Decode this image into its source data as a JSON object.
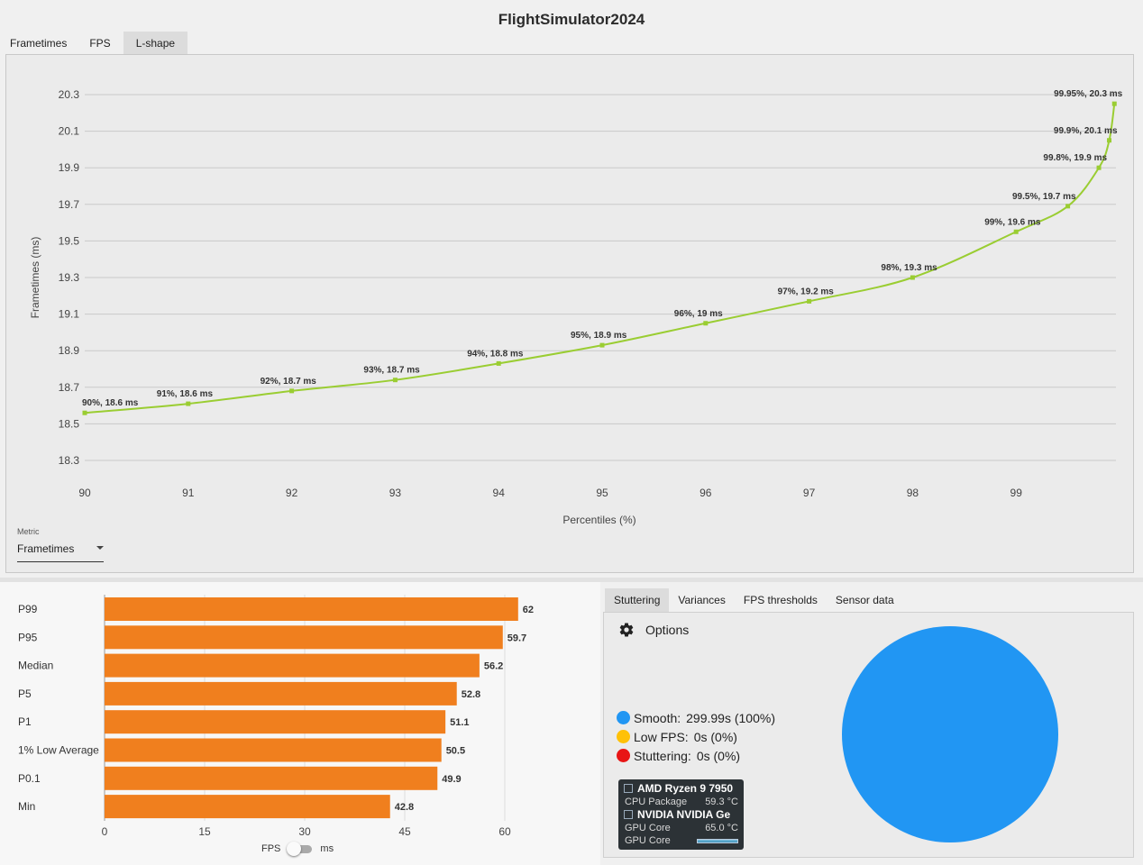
{
  "app_title": "FlightSimulator2024",
  "top_tabs": [
    "Frametimes",
    "FPS",
    "L-shape"
  ],
  "active_top_tab": "L-shape",
  "metric": {
    "label": "Metric",
    "value": "Frametimes"
  },
  "lshape_chart": {
    "type": "line",
    "xlabel": "Percentiles (%)",
    "ylabel": "Frametimes (ms)",
    "x_ticks": [
      90,
      91,
      92,
      93,
      94,
      95,
      96,
      97,
      98,
      99
    ],
    "y_ticks": [
      "18.3",
      "18.5",
      "18.7",
      "18.9",
      "19.1",
      "19.3",
      "19.5",
      "19.7",
      "19.9",
      "20.1",
      "20.3"
    ],
    "ylim": [
      18.3,
      20.3
    ],
    "line_color": "#9acd32",
    "points": [
      {
        "x": 90,
        "y": 18.56,
        "label": "90%, 18.6 ms"
      },
      {
        "x": 91,
        "y": 18.61,
        "label": "91%, 18.6 ms"
      },
      {
        "x": 92,
        "y": 18.68,
        "label": "92%, 18.7 ms"
      },
      {
        "x": 93,
        "y": 18.74,
        "label": "93%, 18.7 ms"
      },
      {
        "x": 94,
        "y": 18.83,
        "label": "94%, 18.8 ms"
      },
      {
        "x": 95,
        "y": 18.93,
        "label": "95%, 18.9 ms"
      },
      {
        "x": 96,
        "y": 19.05,
        "label": "96%, 19 ms"
      },
      {
        "x": 97,
        "y": 19.17,
        "label": "97%, 19.2 ms"
      },
      {
        "x": 98,
        "y": 19.3,
        "label": "98%, 19.3 ms"
      },
      {
        "x": 99,
        "y": 19.55,
        "label": "99%, 19.6 ms"
      },
      {
        "x": 99.5,
        "y": 19.69,
        "label": "99.5%, 19.7 ms"
      },
      {
        "x": 99.8,
        "y": 19.9,
        "label": "99.8%, 19.9 ms"
      },
      {
        "x": 99.9,
        "y": 20.05,
        "label": "99.9%, 20.1 ms"
      },
      {
        "x": 99.95,
        "y": 20.25,
        "label": "99.95%, 20.3 ms"
      }
    ]
  },
  "chart_data": {
    "type": "bar",
    "orientation": "horizontal",
    "categories": [
      "P99",
      "P95",
      "Median",
      "P5",
      "P1",
      "1% Low Average",
      "P0.1",
      "Min"
    ],
    "values": [
      62,
      59.7,
      56.2,
      52.8,
      51.1,
      50.5,
      49.9,
      42.8
    ],
    "x_ticks": [
      0,
      15,
      30,
      45,
      60
    ],
    "xlim": [
      0,
      60
    ],
    "bar_color": "#f07f1e"
  },
  "unit_toggle": {
    "left": "FPS",
    "right": "ms"
  },
  "right_tabs": [
    "Stuttering",
    "Variances",
    "FPS thresholds",
    "Sensor data"
  ],
  "active_right_tab": "Stuttering",
  "options_label": "Options",
  "stutter_legend": [
    {
      "label": "Smooth:",
      "value": "299.99s (100%)",
      "color": "#2196f3"
    },
    {
      "label": "Low FPS:",
      "value": "0s (0%)",
      "color": "#ffc107"
    },
    {
      "label": "Stuttering:",
      "value": "0s (0%)",
      "color": "#e81515"
    }
  ],
  "pie_fraction_smooth": 1.0,
  "osd": {
    "cpu_name": "AMD Ryzen 9 7950",
    "cpu_sensor": "CPU Package",
    "cpu_value": "59.3 °C",
    "gpu_name": "NVIDIA NVIDIA Ge",
    "gpu_sensor_1": "GPU Core",
    "gpu_value": "65.0 °C",
    "gpu_sensor_2": "GPU Core"
  }
}
